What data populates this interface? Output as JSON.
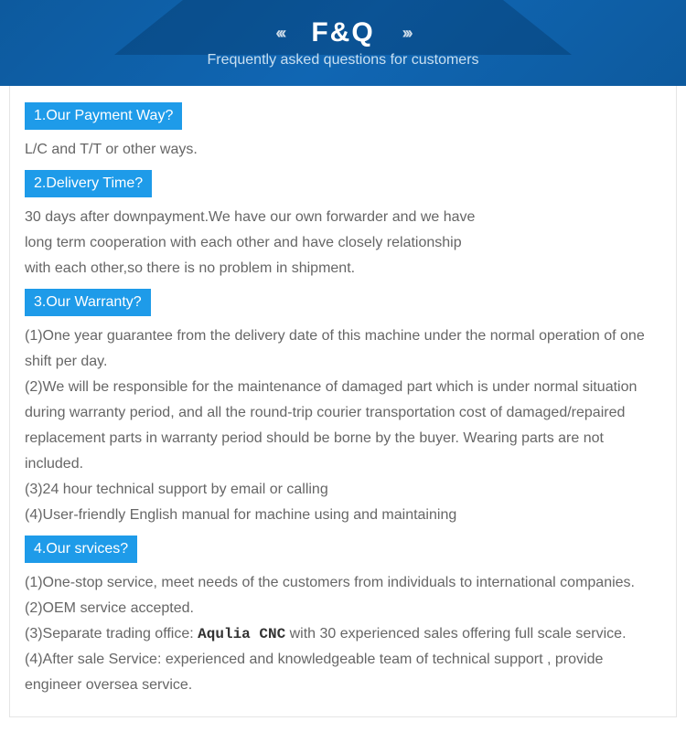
{
  "header": {
    "title": "F&Q",
    "subtitle": "Frequently asked questions for customers",
    "chevron_left": "‹‹‹",
    "chevron_right": "›››"
  },
  "faq": [
    {
      "question": "1.Our Payment Way?",
      "answers": [
        "L/C and T/T or other ways."
      ]
    },
    {
      "question": "2.Delivery Time?",
      "answers": [
        "30 days after downpayment.We have our own forwarder and we have",
        "long term cooperation with each other and have closely relationship",
        "with each other,so there is no problem in shipment."
      ]
    },
    {
      "question": "3.Our Warranty?",
      "answers": [
        "(1)One year guarantee from the delivery date of this machine under the normal operation of one shift per day.",
        "(2)We will be responsible for the maintenance of damaged part which is under normal situation during warranty period, and all the round-trip courier transportation cost of damaged/repaired replacement parts in warranty period should be borne by the buyer. Wearing parts are not included.",
        "(3)24 hour technical support by email or calling",
        "(4)User-friendly English manual for machine using and maintaining"
      ]
    },
    {
      "question": "4.Our srvices?",
      "answers": [
        "(1)One-stop service, meet needs of the customers from individuals to international companies.",
        "(2)OEM service accepted.",
        "(3)Separate trading office: <span class=\"brand\">Aqulia CNC</span> with 30 experienced sales offering full scale service.",
        "(4)After sale Service: experienced and knowledgeable team of technical support , provide engineer oversea service."
      ]
    }
  ],
  "colors": {
    "header_bg": "#0d5a9e",
    "question_bg": "#1e9be9",
    "text_white": "#ffffff",
    "text_gray": "#666666"
  }
}
